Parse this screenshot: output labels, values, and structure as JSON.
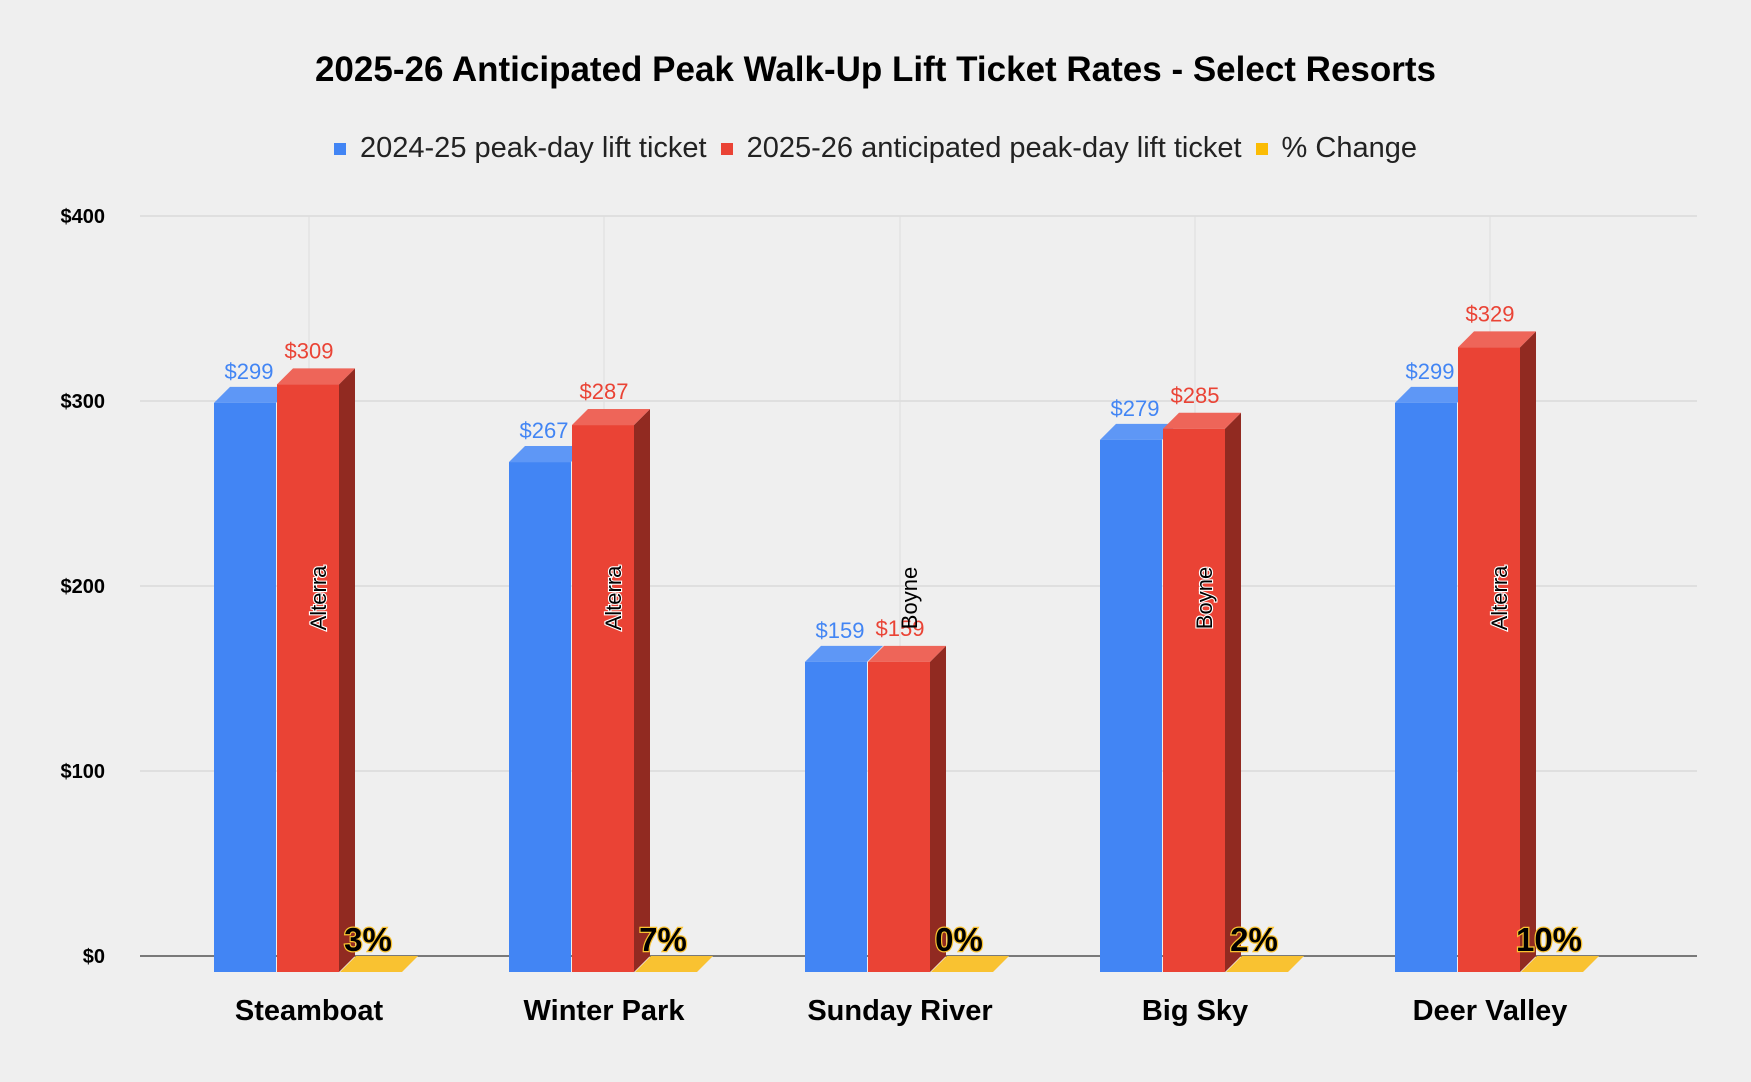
{
  "title": "2025-26 Anticipated Peak Walk-Up Lift Ticket Rates - Select Resorts",
  "legend": [
    {
      "label": "2024-25 peak-day lift ticket",
      "color": "#4285f4"
    },
    {
      "label": "2025-26 anticipated peak-day lift ticket",
      "color": "#ea4335"
    },
    {
      "label": "% Change",
      "color": "#fbbc04"
    }
  ],
  "chart_data": {
    "type": "bar",
    "title": "2025-26 Anticipated Peak Walk-Up Lift Ticket Rates - Select Resorts",
    "xlabel": "",
    "ylabel": "",
    "ylim": [
      0,
      400
    ],
    "yticks": [
      "$0",
      "$100",
      "$200",
      "$300",
      "$400"
    ],
    "ytick_values": [
      0,
      100,
      200,
      300,
      400
    ],
    "categories": [
      "Steamboat",
      "Winter Park",
      "Sunday River",
      "Big Sky",
      "Deer Valley"
    ],
    "series": [
      {
        "name": "2024-25 peak-day lift ticket",
        "color": "#4285f4",
        "values": [
          299,
          267,
          159,
          279,
          299
        ],
        "labels": [
          "$299",
          "$267",
          "$159",
          "$279",
          "$299"
        ]
      },
      {
        "name": "2025-26 anticipated peak-day lift ticket",
        "color": "#ea4335",
        "values": [
          309,
          287,
          159,
          285,
          329
        ],
        "labels": [
          "$309",
          "$287",
          "$159",
          "$285",
          "$329"
        ]
      },
      {
        "name": "% Change",
        "color": "#fbbc04",
        "values": [
          3,
          7,
          0,
          2,
          10
        ],
        "labels": [
          "3%",
          "7%",
          "0%",
          "2%",
          "10%"
        ]
      }
    ],
    "owners": [
      "Alterra",
      "Alterra",
      "Boyne",
      "Boyne",
      "Alterra"
    ],
    "grid": true,
    "legend_position": "top"
  }
}
